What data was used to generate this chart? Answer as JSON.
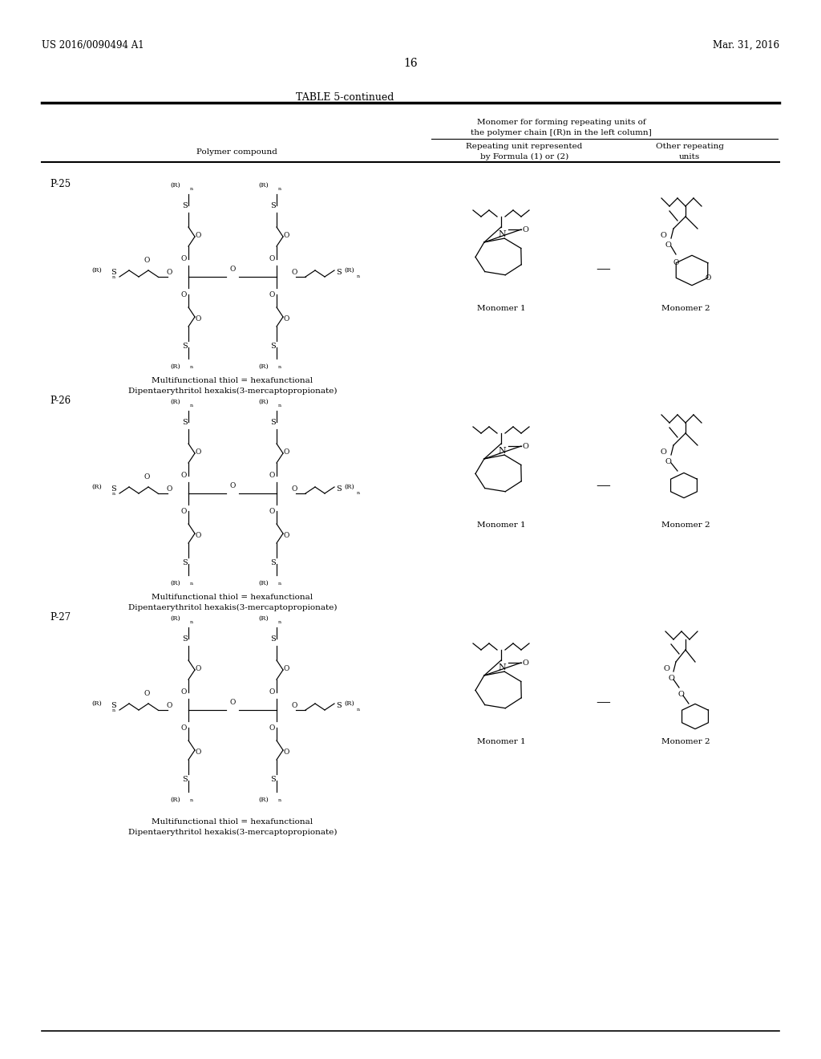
{
  "bg_color": "#ffffff",
  "header_left": "US 2016/0090494 A1",
  "header_right": "Mar. 31, 2016",
  "page_number": "16",
  "table_title": "TABLE 5-continued",
  "col_header_main_line1": "Monomer for forming repeating units of",
  "col_header_main_line2": "the polymer chain [(R)n in the left column]",
  "col_header_left": "Polymer compound",
  "col_header_mid_line1": "Repeating unit represented",
  "col_header_mid_line2": "by Formula (1) or (2)",
  "col_header_right_line1": "Other repeating",
  "col_header_right_line2": "units",
  "row_ids": [
    "P-25",
    "P-26",
    "P-27"
  ],
  "note_line1": "Multifunctional thiol = hexafunctional",
  "note_line2": "Dipentaerythritol hexakis(3-mercaptopropionate)"
}
